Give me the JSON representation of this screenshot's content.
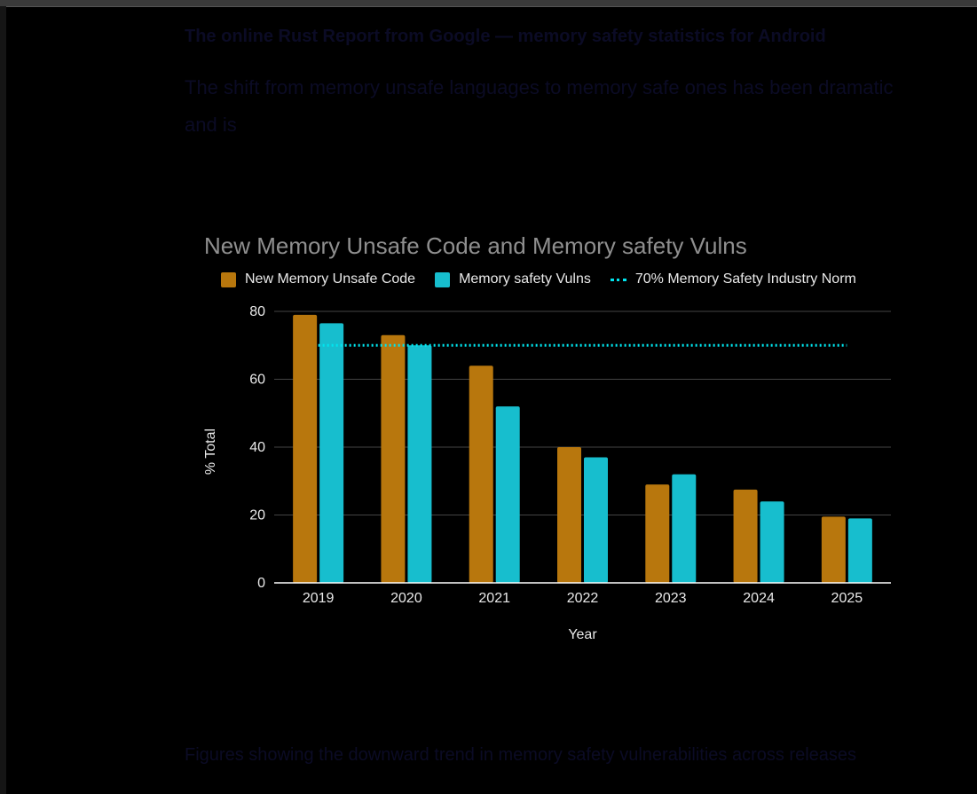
{
  "page": {
    "obscured_line_1": "The online Rust Report from Google — memory safety statistics for Android",
    "obscured_line_2": "The shift from memory unsafe languages to memory safe ones has been dramatic",
    "obscured_line_3": "and is",
    "obscured_bottom": "Figures showing the downward trend in memory safety vulnerabilities across releases"
  },
  "colors": {
    "unsafe_code": "#B8770D",
    "vulns": "#17BECE",
    "norm": "#00E5EF",
    "grid": "#444444",
    "axis": "#FFFFFF",
    "text": "#E9E9E9"
  },
  "chart_data": {
    "type": "bar",
    "title": "New Memory Unsafe Code and Memory safety Vulns",
    "xlabel": "Year",
    "ylabel": "% Total",
    "ylim": [
      0,
      80
    ],
    "yticks": [
      0,
      20,
      40,
      60,
      80
    ],
    "categories": [
      "2019",
      "2020",
      "2021",
      "2022",
      "2023",
      "2024",
      "2025"
    ],
    "series": [
      {
        "name": "New Memory Unsafe Code",
        "values": [
          79,
          73,
          64,
          40,
          29,
          27.5,
          19.5
        ]
      },
      {
        "name": "Memory safety Vulns",
        "values": [
          76.5,
          70,
          52,
          37,
          32,
          24,
          19
        ]
      }
    ],
    "reference_line": {
      "name": "70% Memory Safety Industry Norm",
      "value": 70,
      "style": "dotted"
    },
    "legend_position": "top",
    "grid": true
  }
}
